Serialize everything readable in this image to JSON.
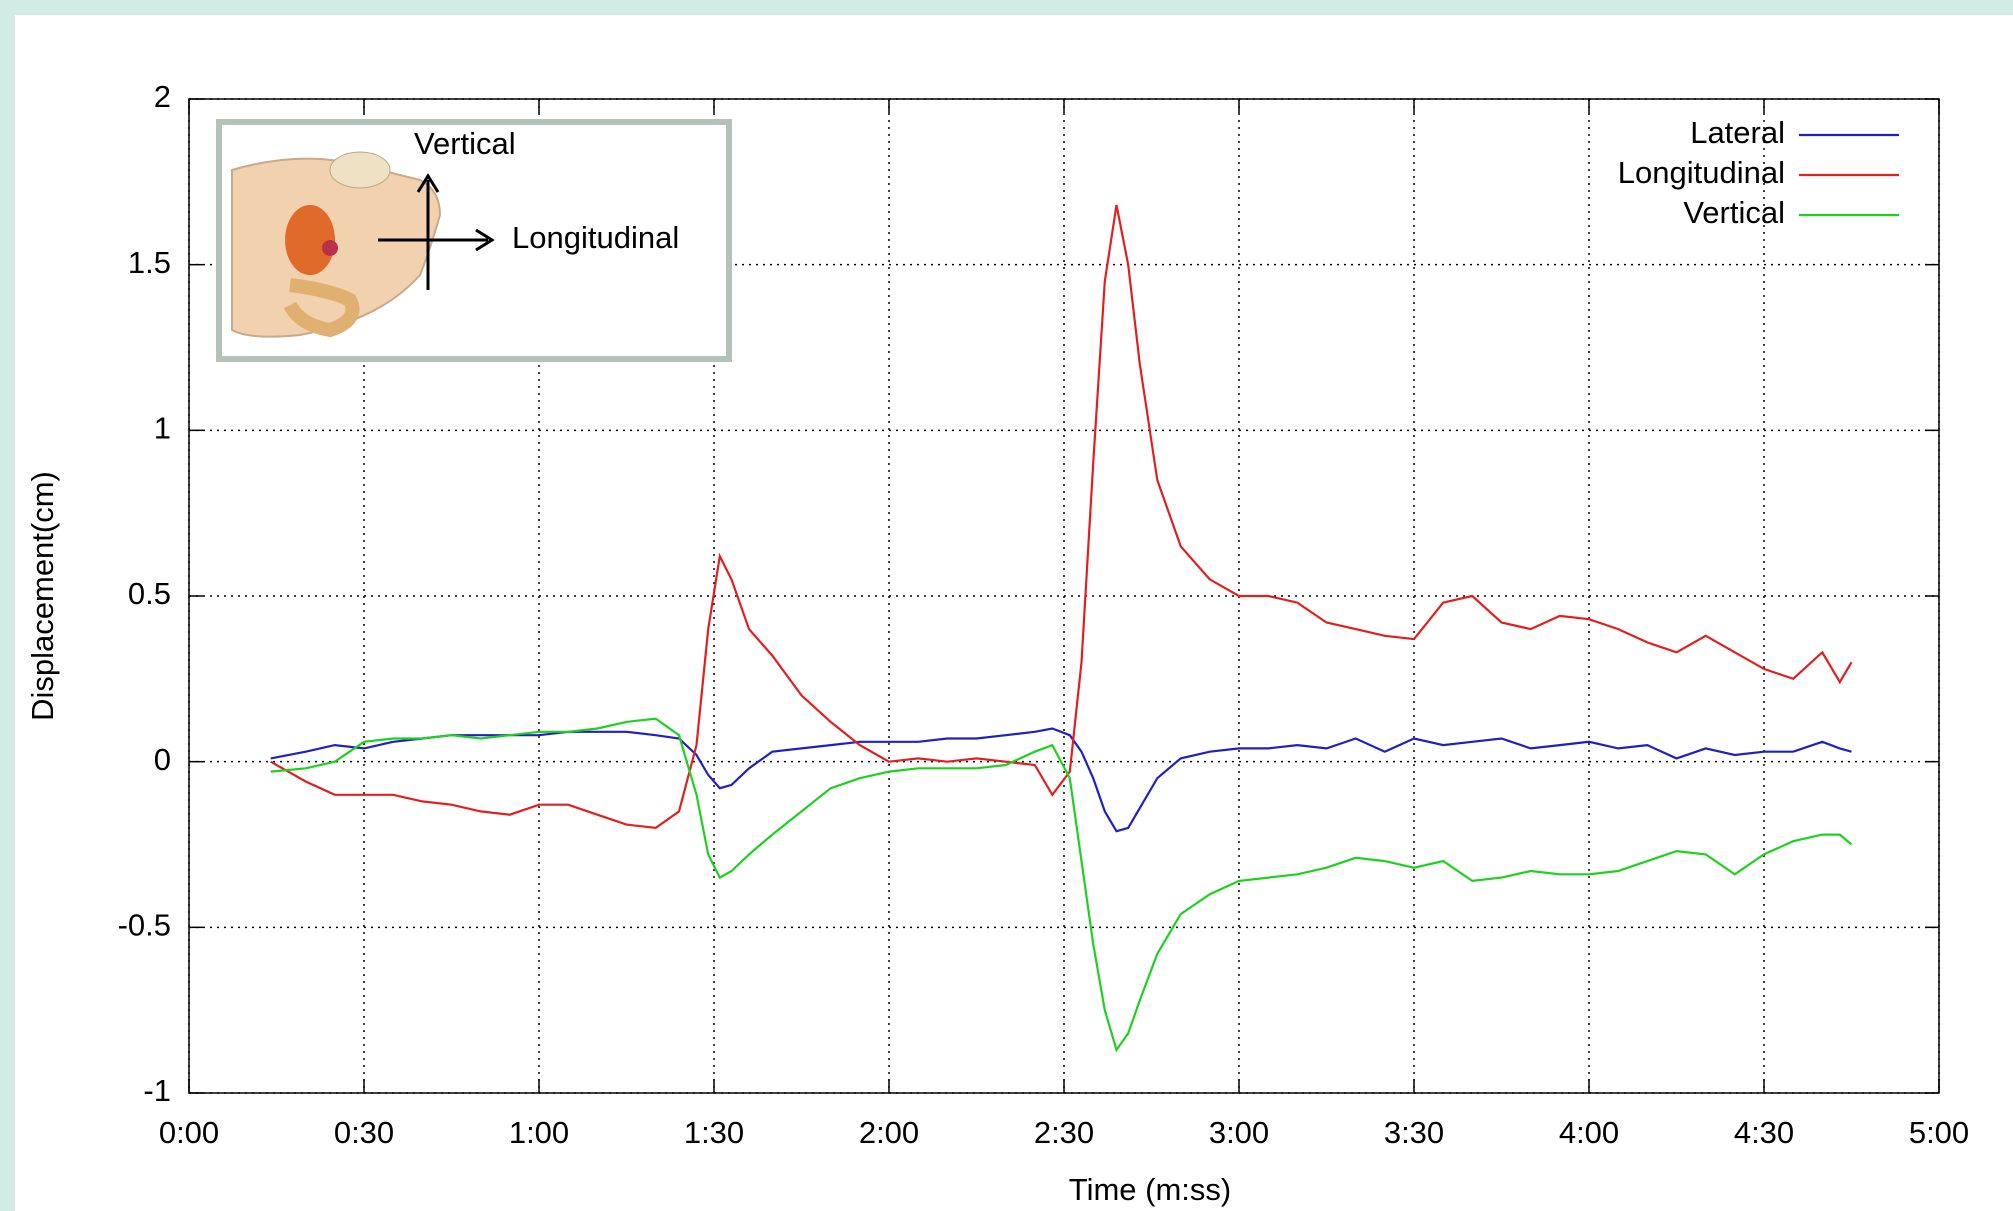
{
  "chart_data": {
    "type": "line",
    "xlabel": "Time (m:ss)",
    "ylabel": "Displacement(cm)",
    "annotations": [
      "Vertical",
      "Longitudinal"
    ],
    "xlim": [
      0,
      300
    ],
    "xticks": [
      {
        "value": 0,
        "label": "0:00"
      },
      {
        "value": 30,
        "label": "0:30"
      },
      {
        "value": 60,
        "label": "1:00"
      },
      {
        "value": 90,
        "label": "1:30"
      },
      {
        "value": 120,
        "label": "2:00"
      },
      {
        "value": 150,
        "label": "2:30"
      },
      {
        "value": 180,
        "label": "3:00"
      },
      {
        "value": 210,
        "label": "3:30"
      },
      {
        "value": 240,
        "label": "4:00"
      },
      {
        "value": 270,
        "label": "4:30"
      },
      {
        "value": 300,
        "label": "5:00"
      }
    ],
    "ylim": [
      -1,
      2
    ],
    "yticks": [
      -1,
      -0.5,
      0,
      0.5,
      1,
      1.5,
      2
    ],
    "grid": true,
    "legend": "top right",
    "x": [
      14,
      20,
      25,
      30,
      35,
      40,
      45,
      50,
      55,
      60,
      65,
      70,
      75,
      80,
      84,
      87,
      89,
      91,
      93,
      96,
      100,
      105,
      110,
      115,
      120,
      125,
      130,
      135,
      140,
      145,
      148,
      151,
      153,
      155,
      157,
      159,
      161,
      163,
      166,
      170,
      175,
      180,
      185,
      190,
      195,
      200,
      205,
      210,
      215,
      220,
      225,
      230,
      235,
      240,
      245,
      250,
      255,
      260,
      265,
      270,
      275,
      280,
      283,
      285
    ],
    "series": [
      {
        "name": "Lateral",
        "color": "#2020c0",
        "values": [
          0.01,
          0.03,
          0.05,
          0.04,
          0.06,
          0.07,
          0.08,
          0.08,
          0.08,
          0.08,
          0.09,
          0.09,
          0.09,
          0.08,
          0.07,
          0.02,
          -0.04,
          -0.08,
          -0.07,
          -0.02,
          0.03,
          0.04,
          0.05,
          0.06,
          0.06,
          0.06,
          0.07,
          0.07,
          0.08,
          0.09,
          0.1,
          0.08,
          0.03,
          -0.05,
          -0.15,
          -0.21,
          -0.2,
          -0.14,
          -0.05,
          0.01,
          0.03,
          0.04,
          0.04,
          0.05,
          0.04,
          0.07,
          0.03,
          0.07,
          0.05,
          0.06,
          0.07,
          0.04,
          0.05,
          0.06,
          0.04,
          0.05,
          0.01,
          0.04,
          0.02,
          0.03,
          0.03,
          0.06,
          0.04,
          0.03
        ]
      },
      {
        "name": "Longitudinal",
        "color": "#e02020",
        "values": [
          0,
          -0.06,
          -0.1,
          -0.1,
          -0.1,
          -0.12,
          -0.13,
          -0.15,
          -0.16,
          -0.13,
          -0.13,
          -0.16,
          -0.19,
          -0.2,
          -0.15,
          0.05,
          0.4,
          0.62,
          0.55,
          0.4,
          0.32,
          0.2,
          0.12,
          0.05,
          0,
          0.01,
          0,
          0.01,
          0,
          -0.01,
          -0.1,
          -0.03,
          0.3,
          0.9,
          1.45,
          1.68,
          1.5,
          1.2,
          0.85,
          0.65,
          0.55,
          0.5,
          0.5,
          0.48,
          0.42,
          0.4,
          0.38,
          0.37,
          0.48,
          0.5,
          0.42,
          0.4,
          0.44,
          0.43,
          0.4,
          0.36,
          0.33,
          0.38,
          0.33,
          0.28,
          0.25,
          0.33,
          0.24,
          0.3
        ]
      },
      {
        "name": "Vertical",
        "color": "#20d020",
        "values": [
          -0.03,
          -0.02,
          0,
          0.06,
          0.07,
          0.07,
          0.08,
          0.07,
          0.08,
          0.09,
          0.09,
          0.1,
          0.12,
          0.13,
          0.08,
          -0.1,
          -0.28,
          -0.35,
          -0.33,
          -0.28,
          -0.22,
          -0.15,
          -0.08,
          -0.05,
          -0.03,
          -0.02,
          -0.02,
          -0.02,
          -0.01,
          0.03,
          0.05,
          -0.05,
          -0.3,
          -0.55,
          -0.75,
          -0.87,
          -0.82,
          -0.72,
          -0.58,
          -0.46,
          -0.4,
          -0.36,
          -0.35,
          -0.34,
          -0.32,
          -0.29,
          -0.3,
          -0.32,
          -0.3,
          -0.36,
          -0.35,
          -0.33,
          -0.34,
          -0.34,
          -0.33,
          -0.3,
          -0.27,
          -0.28,
          -0.34,
          -0.28,
          -0.24,
          -0.22,
          -0.22,
          -0.25
        ]
      }
    ]
  }
}
